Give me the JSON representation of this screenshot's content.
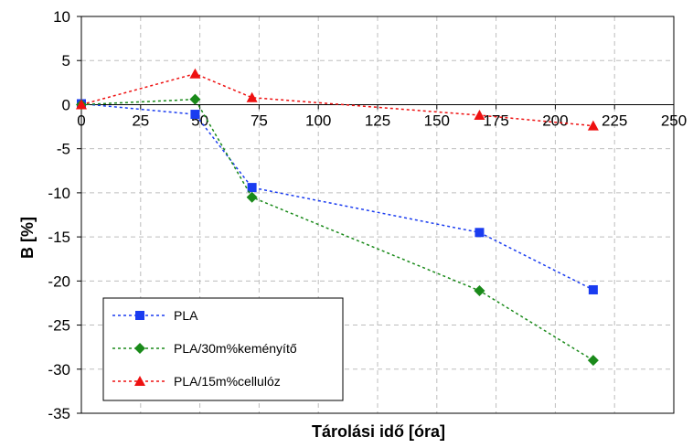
{
  "chart_data": {
    "type": "line",
    "title": "",
    "xlabel": "Tárolási idő [óra]",
    "ylabel": "B [%]",
    "xlim": [
      0,
      250
    ],
    "ylim": [
      -35,
      10
    ],
    "x_ticks": [
      0,
      25,
      50,
      75,
      100,
      125,
      150,
      175,
      200,
      225,
      250
    ],
    "y_ticks": [
      10,
      5,
      0,
      -5,
      -10,
      -15,
      -20,
      -25,
      -30,
      -35
    ],
    "grid": true,
    "legend_position": "bottom-left",
    "series": [
      {
        "name": "PLA",
        "color": "#1a3cf0",
        "marker": "square",
        "x": [
          0,
          48,
          72,
          168,
          216
        ],
        "y": [
          0.1,
          -1.1,
          -9.4,
          -14.5,
          -21.0
        ]
      },
      {
        "name": "PLA/30m%keményítő",
        "color": "#1a8a1a",
        "marker": "diamond",
        "x": [
          0,
          48,
          72,
          168,
          216
        ],
        "y": [
          0.0,
          0.6,
          -10.5,
          -21.1,
          -29.0
        ]
      },
      {
        "name": "PLA/15m%cellulóz",
        "color": "#ee1111",
        "marker": "triangle",
        "x": [
          0,
          48,
          72,
          168,
          216
        ],
        "y": [
          0.0,
          3.5,
          0.8,
          -1.2,
          -2.4
        ]
      }
    ]
  }
}
